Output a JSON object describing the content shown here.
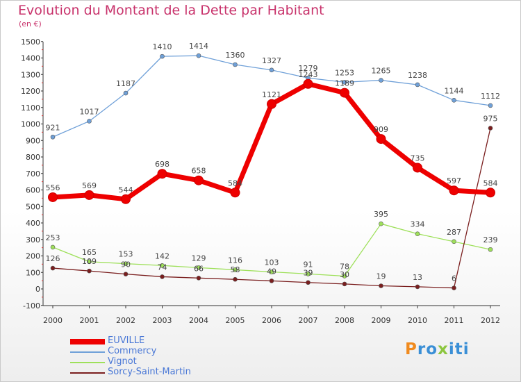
{
  "title": "Evolution du Montant de la Dette par Habitant",
  "subtitle": "(en €)",
  "logo": {
    "text": "Proxiti",
    "letters": [
      "P",
      "r",
      "o",
      "x",
      "i",
      "t",
      "i"
    ],
    "colors": [
      "#f08a1e",
      "#3a8fd6",
      "#3a8fd6",
      "#8cc63f",
      "#3a8fd6",
      "#3a8fd6",
      "#3a8fd6"
    ]
  },
  "chart_data": {
    "type": "line",
    "x": [
      "2000",
      "2001",
      "2002",
      "2003",
      "2004",
      "2005",
      "2006",
      "2007",
      "2008",
      "2009",
      "2010",
      "2011",
      "2012"
    ],
    "ylim": [
      -100,
      1500
    ],
    "yticks": [
      "-100",
      "0",
      "100",
      "200",
      "300",
      "400",
      "500",
      "600",
      "700",
      "800",
      "900",
      "1000",
      "1100",
      "1200",
      "1300",
      "1400",
      "1500"
    ],
    "grid": false,
    "legend_position": "bottom-left",
    "series": [
      {
        "name": "EUVILLE",
        "color": "#ee0000",
        "width": 7,
        "values": [
          556,
          569,
          544,
          698,
          658,
          584,
          1121,
          1243,
          1189,
          909,
          735,
          597,
          584
        ],
        "labels": [
          "556",
          "569",
          "544",
          "698",
          "658",
          "584",
          "1121",
          "1243",
          "1189",
          "909",
          "735",
          "597",
          "584"
        ]
      },
      {
        "name": "Commercy",
        "color": "#6fa0d8",
        "width": 1.3,
        "values": [
          921,
          1017,
          1187,
          1410,
          1414,
          1360,
          1327,
          1279,
          1253,
          1265,
          1238,
          1144,
          1112
        ],
        "labels": [
          "921",
          "1017",
          "1187",
          "1410",
          "1414",
          "1360",
          "1327",
          "1279",
          "1253",
          "1265",
          "1238",
          "1144",
          "1112"
        ]
      },
      {
        "name": "Vignot",
        "color": "#9ee05a",
        "width": 1.3,
        "values": [
          253,
          165,
          153,
          142,
          129,
          116,
          103,
          91,
          78,
          395,
          334,
          287,
          239
        ],
        "labels": [
          "253",
          "165",
          "153",
          "142",
          "129",
          "116",
          "103",
          "91",
          "78",
          "395",
          "334",
          "287",
          "239"
        ]
      },
      {
        "name": "Sorcy-Saint-Martin",
        "color": "#7a1e1e",
        "width": 1.3,
        "values": [
          126,
          109,
          90,
          74,
          66,
          58,
          49,
          39,
          30,
          19,
          13,
          6,
          975
        ],
        "labels": [
          "126",
          "109",
          "90",
          "74",
          "66",
          "58",
          "49",
          "39",
          "30",
          "19",
          "13",
          "6",
          "975"
        ]
      }
    ]
  }
}
